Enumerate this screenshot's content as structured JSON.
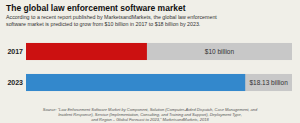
{
  "chart_data": {
    "type": "bar",
    "orientation": "horizontal",
    "title": "The global law enforcement software market",
    "subtitle": "According to a recent report published by MarketsandMarkets, the global law enforcement\nsoftware market is predicted to grow from $10 billion in 2017 to $18 billion by 2023.",
    "annotations": [
      "Source: “Law Enforcement Software Market by Component, Solution (Computer-Aided Dispatch, Case Management, and\nIncident Response), Service (Implementation, Consulting, and Training and Support), Deployment Type,\nand Region – Global Forecast to 2023,” MarketsandMarkets, 2018"
    ],
    "categories": [
      "2017",
      "2023"
    ],
    "values": [
      10,
      18.13
    ],
    "value_labels": [
      "$10 billion",
      "$18.13 billion"
    ],
    "colors": [
      "#cc1111",
      "#3388cc"
    ],
    "xlim": [
      0,
      22
    ],
    "data_labels": true,
    "tick_labels": "y"
  }
}
